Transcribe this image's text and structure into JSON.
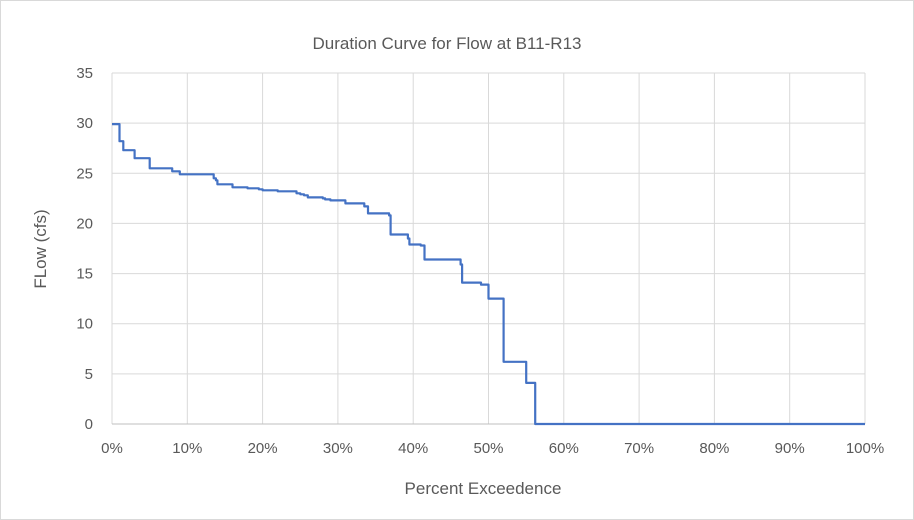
{
  "chart_data": {
    "type": "line",
    "title": "Duration Curve for Flow at B11-R13",
    "xlabel": "Percent Exceedence",
    "ylabel": "FLow (cfs)",
    "xlim": [
      0,
      100
    ],
    "ylim": [
      0,
      35
    ],
    "grid": true,
    "x_ticks": [
      "0%",
      "10%",
      "20%",
      "30%",
      "40%",
      "50%",
      "60%",
      "70%",
      "80%",
      "90%",
      "100%"
    ],
    "y_ticks": [
      "0",
      "5",
      "10",
      "15",
      "20",
      "25",
      "30",
      "35"
    ],
    "series": [
      {
        "name": "Flow",
        "color": "#4472c4",
        "x": [
          0,
          0.8,
          1,
          1.5,
          2,
          2.5,
          3,
          3.5,
          5,
          5.5,
          7.5,
          8,
          9,
          13,
          13.5,
          13.8,
          14,
          15.5,
          16,
          17.5,
          18,
          19.5,
          20,
          21.5,
          22,
          24.5,
          25,
          25.5,
          26,
          27.5,
          28,
          28.3,
          29,
          30.5,
          31,
          33,
          33.5,
          34,
          36.5,
          36.8,
          37,
          39,
          39.3,
          39.5,
          40.5,
          41,
          41.5,
          46,
          46.3,
          46.5,
          48.5,
          49,
          49.5,
          50,
          51.5,
          52,
          53.5,
          54.5,
          55,
          56,
          56.2,
          100
        ],
        "y": [
          29.9,
          29.9,
          28.2,
          27.3,
          27.3,
          27.3,
          26.5,
          26.5,
          25.5,
          25.5,
          25.5,
          25.2,
          24.9,
          24.9,
          24.5,
          24.3,
          23.9,
          23.9,
          23.6,
          23.6,
          23.5,
          23.4,
          23.3,
          23.3,
          23.2,
          23.0,
          22.9,
          22.8,
          22.6,
          22.6,
          22.5,
          22.4,
          22.3,
          22.3,
          22.0,
          22.0,
          21.7,
          21.0,
          21.0,
          20.8,
          18.9,
          18.9,
          18.5,
          17.9,
          17.9,
          17.8,
          16.4,
          16.4,
          15.9,
          14.1,
          14.1,
          13.9,
          13.9,
          12.5,
          12.5,
          6.2,
          6.2,
          6.2,
          4.1,
          4.1,
          0,
          0
        ]
      }
    ]
  }
}
